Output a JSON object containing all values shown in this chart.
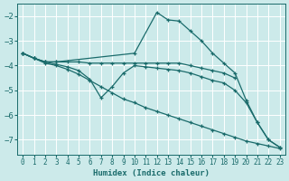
{
  "xlabel": "Humidex (Indice chaleur)",
  "bg_color": "#cceaea",
  "line_color": "#1a6b6b",
  "grid_color": "#ffffff",
  "xlim": [
    -0.5,
    23.5
  ],
  "ylim": [
    -7.6,
    -1.5
  ],
  "yticks": [
    -7,
    -6,
    -5,
    -4,
    -3,
    -2
  ],
  "xticks": [
    0,
    1,
    2,
    3,
    4,
    5,
    6,
    7,
    8,
    9,
    10,
    11,
    12,
    13,
    14,
    15,
    16,
    17,
    18,
    19,
    20,
    21,
    22,
    23
  ],
  "lines": [
    {
      "x": [
        0,
        1,
        2,
        3,
        10,
        12,
        13,
        14,
        15,
        16,
        17,
        18,
        19,
        20,
        21,
        22,
        23
      ],
      "y": [
        -3.5,
        -3.7,
        -3.85,
        -3.85,
        -3.5,
        -1.85,
        -2.15,
        -2.2,
        -2.6,
        -3.0,
        -3.5,
        -3.9,
        -4.3,
        -5.4,
        -6.3,
        -7.0,
        -7.3
      ]
    },
    {
      "x": [
        0,
        1,
        2,
        3,
        4,
        5,
        6,
        7,
        8,
        9,
        10,
        11,
        12,
        13,
        14,
        15,
        16,
        17,
        18,
        19
      ],
      "y": [
        -3.5,
        -3.7,
        -3.85,
        -3.85,
        -3.85,
        -3.85,
        -3.9,
        -3.9,
        -3.9,
        -3.9,
        -3.9,
        -3.9,
        -3.9,
        -3.9,
        -3.9,
        -4.0,
        -4.1,
        -4.2,
        -4.3,
        -4.5
      ]
    },
    {
      "x": [
        0,
        1,
        2,
        3,
        4,
        5,
        6,
        7,
        8,
        9,
        10,
        11,
        12,
        13,
        14,
        15,
        16,
        17,
        18,
        19,
        20,
        21,
        22,
        23
      ],
      "y": [
        -3.5,
        -3.7,
        -3.85,
        -3.95,
        -4.05,
        -4.2,
        -4.55,
        -5.3,
        -4.85,
        -4.3,
        -4.0,
        -4.05,
        -4.1,
        -4.15,
        -4.2,
        -4.3,
        -4.45,
        -4.6,
        -4.7,
        -5.0,
        -5.5,
        -6.3,
        -7.0,
        -7.3
      ]
    },
    {
      "x": [
        0,
        1,
        2,
        3,
        4,
        5,
        6,
        7,
        8,
        9,
        10,
        11,
        12,
        13,
        14,
        15,
        16,
        17,
        18,
        19,
        20,
        21,
        22,
        23
      ],
      "y": [
        -3.5,
        -3.7,
        -3.9,
        -4.0,
        -4.15,
        -4.35,
        -4.6,
        -4.85,
        -5.1,
        -5.35,
        -5.5,
        -5.7,
        -5.85,
        -6.0,
        -6.15,
        -6.3,
        -6.45,
        -6.6,
        -6.75,
        -6.9,
        -7.05,
        -7.15,
        -7.25,
        -7.35
      ]
    }
  ]
}
